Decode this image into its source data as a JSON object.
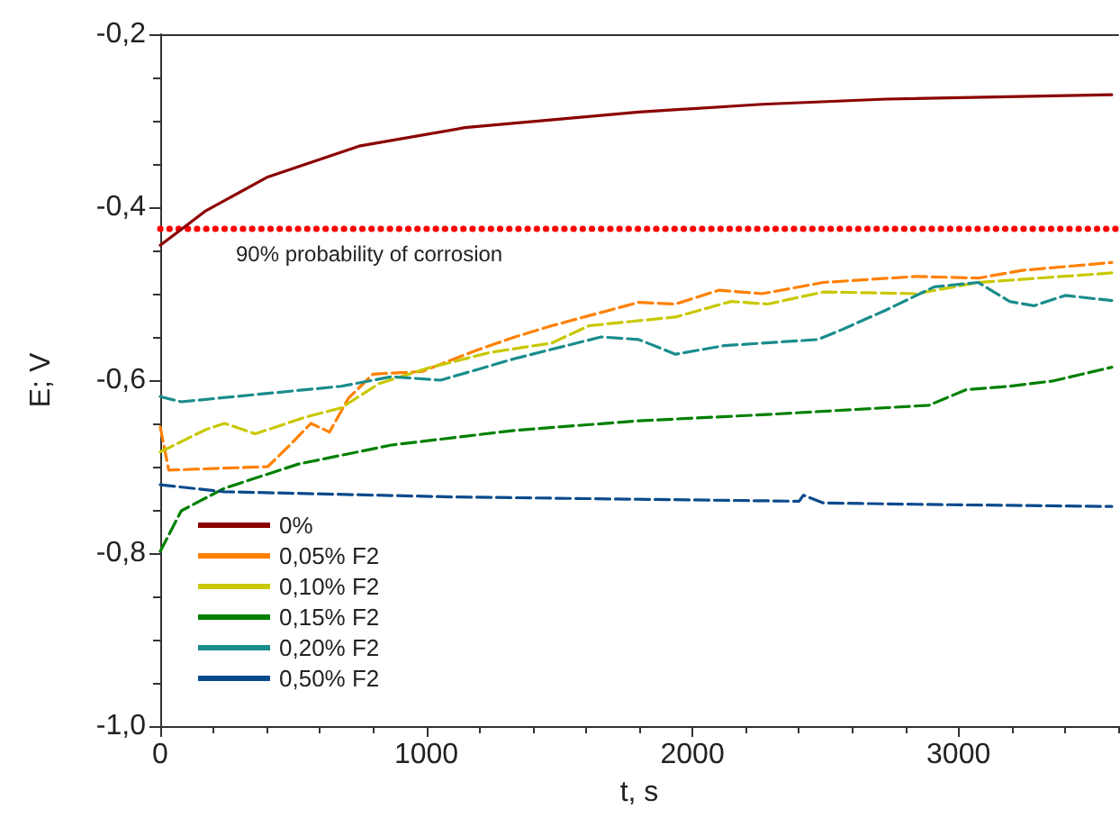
{
  "chart_data": {
    "type": "line",
    "xlabel": "t, s",
    "ylabel": "E; V",
    "xlim": [
      0,
      3600
    ],
    "xticks": [
      0,
      1000,
      2000,
      3000
    ],
    "ylim": [
      -1.0,
      -0.2
    ],
    "yticks": [
      {
        "value": -1.0,
        "label": "-1,0"
      },
      {
        "value": -0.8,
        "label": "-0,8"
      },
      {
        "value": -0.6,
        "label": "-0,6"
      },
      {
        "value": -0.4,
        "label": "-0,4"
      },
      {
        "value": -0.2,
        "label": "-0,2"
      }
    ],
    "grid": false,
    "legend": "bottom left",
    "marker": "none",
    "ref_lines": [
      {
        "axis": "y",
        "value": -0.425,
        "label": "90% probability of corrosion",
        "color": "#ff0000",
        "line_style": "dotted"
      }
    ],
    "series": [
      {
        "name": "0%",
        "color": "#8b0000",
        "line_style": "solid",
        "x": [
          0,
          172,
          404,
          752,
          1145,
          1798,
          2262,
          2727,
          3576
        ],
        "values": [
          -0.444,
          -0.404,
          -0.365,
          -0.329,
          -0.308,
          -0.29,
          -0.281,
          -0.275,
          -0.27
        ]
      },
      {
        "name": "0,05% F2",
        "color": "#ff8000",
        "line_style": "dashed",
        "x": [
          0,
          32,
          404,
          497,
          566,
          636,
          707,
          799,
          983,
          1192,
          1333,
          1472,
          1798,
          1936,
          2099,
          2262,
          2492,
          2842,
          3074,
          3239,
          3576
        ],
        "values": [
          -0.654,
          -0.704,
          -0.7,
          -0.672,
          -0.65,
          -0.66,
          -0.621,
          -0.593,
          -0.59,
          -0.565,
          -0.55,
          -0.537,
          -0.51,
          -0.512,
          -0.496,
          -0.5,
          -0.487,
          -0.48,
          -0.482,
          -0.473,
          -0.464
        ]
      },
      {
        "name": "0,10% F2",
        "color": "#c8c800",
        "line_style": "dashed",
        "x": [
          0,
          172,
          242,
          357,
          543,
          680,
          822,
          1007,
          1239,
          1472,
          1612,
          1936,
          2145,
          2283,
          2492,
          2842,
          3074,
          3576
        ],
        "values": [
          -0.683,
          -0.657,
          -0.65,
          -0.662,
          -0.643,
          -0.632,
          -0.604,
          -0.586,
          -0.568,
          -0.557,
          -0.537,
          -0.527,
          -0.509,
          -0.512,
          -0.498,
          -0.5,
          -0.487,
          -0.476
        ]
      },
      {
        "name": "0,15% F2",
        "color": "#008000",
        "line_style": "dashed",
        "x": [
          0,
          79,
          241,
          519,
          869,
          1333,
          1798,
          2262,
          2889,
          3028,
          3192,
          3353,
          3576
        ],
        "values": [
          -0.798,
          -0.751,
          -0.725,
          -0.697,
          -0.675,
          -0.658,
          -0.647,
          -0.64,
          -0.629,
          -0.611,
          -0.607,
          -0.601,
          -0.585
        ]
      },
      {
        "name": "0,20% F2",
        "color": "#1a8c8c",
        "line_style": "dashed",
        "x": [
          0,
          79,
          680,
          869,
          1054,
          1333,
          1657,
          1798,
          1936,
          2121,
          2471,
          2566,
          2727,
          2909,
          3074,
          3192,
          3283,
          3401,
          3576
        ],
        "values": [
          -0.619,
          -0.625,
          -0.607,
          -0.596,
          -0.6,
          -0.575,
          -0.55,
          -0.553,
          -0.57,
          -0.56,
          -0.553,
          -0.541,
          -0.519,
          -0.492,
          -0.487,
          -0.509,
          -0.514,
          -0.502,
          -0.508
        ]
      },
      {
        "name": "0,50% F2",
        "color": "#0a4a8c",
        "line_style": "dashed",
        "x": [
          0,
          241,
          1098,
          2401,
          2417,
          2492,
          2956,
          3576
        ],
        "values": [
          -0.721,
          -0.729,
          -0.735,
          -0.74,
          -0.733,
          -0.742,
          -0.744,
          -0.746
        ]
      }
    ]
  }
}
